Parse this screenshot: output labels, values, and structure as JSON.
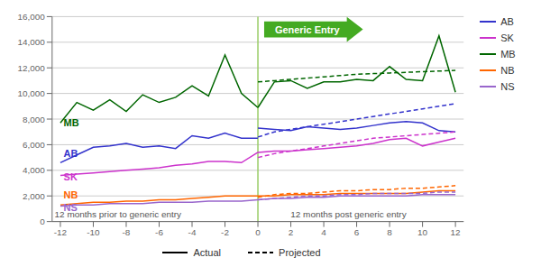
{
  "chart_data": {
    "type": "line",
    "xlim": [
      -12.5,
      12.5
    ],
    "xticks": [
      -12,
      -10,
      -8,
      -6,
      -4,
      -2,
      0,
      2,
      4,
      6,
      8,
      10,
      12
    ],
    "ylim": [
      0,
      16000
    ],
    "yticks": [
      0,
      {
        "value": 2000,
        "label": "2,000"
      },
      {
        "value": 4000,
        "label": "4,000"
      },
      {
        "value": 6000,
        "label": "6,000"
      },
      {
        "value": 8000,
        "label": "8,000"
      },
      {
        "value": 10000,
        "label": "10,000"
      },
      {
        "value": 12000,
        "label": "12,000"
      },
      {
        "value": 14000,
        "label": "14,000"
      },
      {
        "value": 16000,
        "label": "16,000"
      }
    ],
    "grid": true,
    "series": [
      {
        "name": "AB",
        "color": "#3333cc",
        "line_style": "solid",
        "x": [
          -12,
          -11,
          -10,
          -9,
          -8,
          -7,
          -6,
          -5,
          -4,
          -3,
          -2,
          -1,
          0
        ],
        "values": [
          4600,
          5200,
          5800,
          5900,
          6100,
          5800,
          5900,
          5700,
          6700,
          6500,
          6900,
          6500,
          6500
        ]
      },
      {
        "name": "AB",
        "color": "#3333cc",
        "line_style": "solid",
        "x": [
          0,
          1,
          2,
          3,
          4,
          5,
          6,
          7,
          8,
          9,
          10,
          11,
          12
        ],
        "values": [
          7300,
          7200,
          7100,
          7400,
          7300,
          7200,
          7300,
          7500,
          7700,
          7800,
          7700,
          7100,
          7000
        ]
      },
      {
        "name": "SK",
        "color": "#cc33cc",
        "line_style": "solid",
        "x": [
          -12,
          -11,
          -10,
          -9,
          -8,
          -7,
          -6,
          -5,
          -4,
          -3,
          -2,
          -1,
          0
        ],
        "values": [
          3600,
          3700,
          3800,
          3900,
          4000,
          4100,
          4200,
          4400,
          4500,
          4700,
          4700,
          4600,
          5400
        ]
      },
      {
        "name": "SK",
        "color": "#cc33cc",
        "line_style": "solid",
        "x": [
          0,
          1,
          2,
          3,
          4,
          5,
          6,
          7,
          8,
          9,
          10,
          11,
          12
        ],
        "values": [
          5400,
          5500,
          5500,
          5600,
          5700,
          5800,
          5900,
          6100,
          6400,
          6500,
          5900,
          6200,
          6500
        ]
      },
      {
        "name": "MB",
        "color": "#006600",
        "line_style": "solid",
        "x": [
          -12,
          -11,
          -10,
          -9,
          -8,
          -7,
          -6,
          -5,
          -4,
          -3,
          -2,
          -1,
          0
        ],
        "values": [
          7700,
          9300,
          8700,
          9500,
          8600,
          9900,
          9300,
          9700,
          10600,
          9800,
          13000,
          10000,
          8900
        ]
      },
      {
        "name": "MB",
        "color": "#006600",
        "line_style": "solid",
        "x": [
          0,
          1,
          2,
          3,
          4,
          5,
          6,
          7,
          8,
          9,
          10,
          11,
          12
        ],
        "values": [
          8900,
          10900,
          11000,
          10400,
          10900,
          10900,
          11100,
          11000,
          12100,
          11100,
          11000,
          14500,
          10100
        ]
      },
      {
        "name": "NB",
        "color": "#ff6600",
        "line_style": "solid",
        "x": [
          -12,
          -11,
          -10,
          -9,
          -8,
          -7,
          -6,
          -5,
          -4,
          -3,
          -2,
          -1,
          0
        ],
        "values": [
          1300,
          1400,
          1500,
          1500,
          1600,
          1600,
          1700,
          1700,
          1800,
          1900,
          2000,
          2000,
          2000
        ]
      },
      {
        "name": "NB",
        "color": "#ff6600",
        "line_style": "solid",
        "x": [
          0,
          1,
          2,
          3,
          4,
          5,
          6,
          7,
          8,
          9,
          10,
          11,
          12
        ],
        "values": [
          2000,
          2000,
          2100,
          2100,
          2100,
          2200,
          2200,
          2200,
          2200,
          2200,
          2300,
          2400,
          2400
        ]
      },
      {
        "name": "NS",
        "color": "#9966cc",
        "line_style": "solid",
        "x": [
          -12,
          -11,
          -10,
          -9,
          -8,
          -7,
          -6,
          -5,
          -4,
          -3,
          -2,
          -1,
          0
        ],
        "values": [
          1200,
          1300,
          1300,
          1400,
          1400,
          1400,
          1500,
          1500,
          1500,
          1600,
          1600,
          1600,
          1700
        ]
      },
      {
        "name": "NS",
        "color": "#9966cc",
        "line_style": "solid",
        "x": [
          0,
          1,
          2,
          3,
          4,
          5,
          6,
          7,
          8,
          9,
          10,
          11,
          12
        ],
        "values": [
          1700,
          1800,
          1800,
          1900,
          1900,
          2000,
          2000,
          2000,
          2000,
          2000,
          2100,
          2100,
          2100
        ]
      },
      {
        "name": "AB",
        "color": "#3333cc",
        "line_style": "dashed",
        "x": [
          0,
          1,
          2,
          3,
          4,
          5,
          6,
          7,
          8,
          9,
          10,
          11,
          12
        ],
        "values": [
          6600,
          7000,
          7200,
          7400,
          7600,
          7800,
          8000,
          8200,
          8400,
          8600,
          8800,
          9000,
          9200
        ]
      },
      {
        "name": "SK",
        "color": "#cc33cc",
        "line_style": "dashed",
        "x": [
          0,
          1,
          2,
          3,
          4,
          5,
          6,
          7,
          8,
          9,
          10,
          11,
          12
        ],
        "values": [
          5000,
          5300,
          5500,
          5700,
          5900,
          6100,
          6300,
          6500,
          6600,
          6700,
          6800,
          6900,
          7000
        ]
      },
      {
        "name": "MB",
        "color": "#006600",
        "line_style": "dashed",
        "x": [
          0,
          1,
          2,
          3,
          4,
          5,
          6,
          7,
          8,
          9,
          10,
          11,
          12
        ],
        "values": [
          10900,
          11000,
          11100,
          11200,
          11300,
          11400,
          11500,
          11550,
          11600,
          11650,
          11700,
          11750,
          11800
        ]
      },
      {
        "name": "NB",
        "color": "#ff6600",
        "line_style": "dashed",
        "x": [
          0,
          1,
          2,
          3,
          4,
          5,
          6,
          7,
          8,
          9,
          10,
          11,
          12
        ],
        "values": [
          1900,
          2100,
          2200,
          2200,
          2300,
          2400,
          2400,
          2500,
          2500,
          2600,
          2600,
          2700,
          2800
        ]
      },
      {
        "name": "NS",
        "color": "#9966cc",
        "line_style": "dashed",
        "x": [
          0,
          1,
          2,
          3,
          4,
          5,
          6,
          7,
          8,
          9,
          10,
          11,
          12
        ],
        "values": [
          1700,
          1800,
          1900,
          2000,
          2000,
          2100,
          2100,
          2200,
          2200,
          2200,
          2200,
          2300,
          2300
        ]
      }
    ],
    "line_style_legend": [
      {
        "line_style": "solid",
        "label": "Actual"
      },
      {
        "line_style": "dashed",
        "label": "Projected"
      }
    ],
    "vlines": [
      {
        "value": 0,
        "color": "#99cc66"
      }
    ],
    "annotations": [
      {
        "text": "12 months prior to generic entry",
        "x": -8.5,
        "y": 200
      },
      {
        "text": "12 months post generic entry",
        "x": 5.5,
        "y": 200
      }
    ],
    "series_labels": [
      {
        "text": "MB",
        "x": -11.8,
        "y": 7700,
        "color": "#006600"
      },
      {
        "text": "AB",
        "x": -11.8,
        "y": 5300,
        "color": "#3333cc"
      },
      {
        "text": "SK",
        "x": -11.8,
        "y": 3500,
        "color": "#cc33cc"
      },
      {
        "text": "NB",
        "x": -11.8,
        "y": 2100,
        "color": "#ff6600"
      },
      {
        "text": "NS",
        "x": -11.8,
        "y": 1100,
        "color": "#9966cc"
      }
    ],
    "arrow_label": {
      "text": "Generic Entry",
      "x": 3.0,
      "y": 15000,
      "color": "#44aa22"
    }
  }
}
